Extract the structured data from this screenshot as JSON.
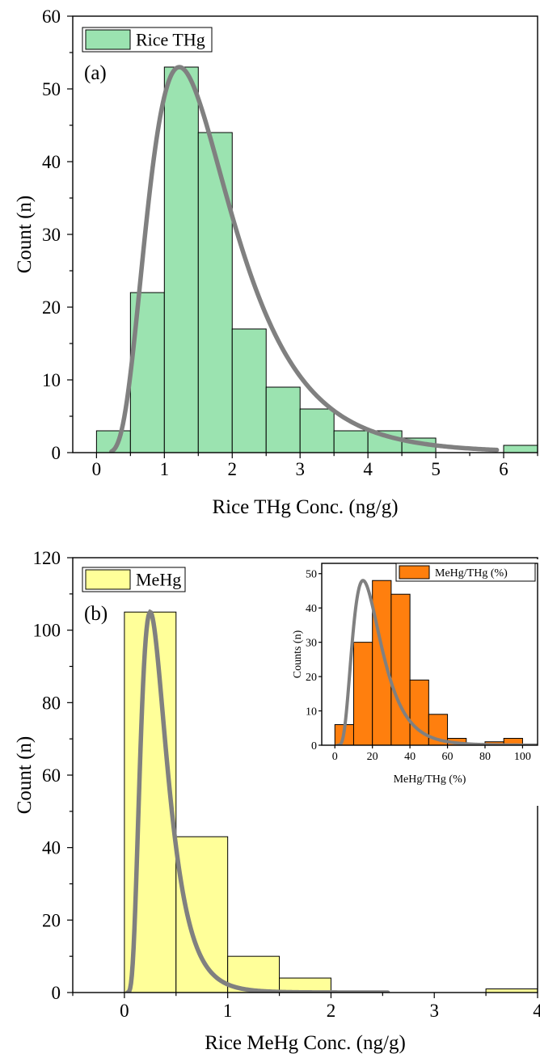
{
  "chart_data": [
    {
      "id": "a",
      "type": "bar",
      "panel_label": "(a)",
      "xlabel": "Rice THg Conc. (ng/g)",
      "ylabel": "Count (n)",
      "xlim": [
        -0.35,
        6.5
      ],
      "ylim": [
        0,
        60
      ],
      "xticks": [
        0,
        1,
        2,
        3,
        4,
        5,
        6
      ],
      "yticks": [
        0,
        10,
        20,
        30,
        40,
        50,
        60
      ],
      "bins": [
        [
          0,
          0.5,
          3
        ],
        [
          0.5,
          1,
          22
        ],
        [
          1,
          1.5,
          53
        ],
        [
          1.5,
          2,
          44
        ],
        [
          2,
          2.5,
          17
        ],
        [
          2.5,
          3,
          9
        ],
        [
          3,
          3.5,
          6
        ],
        [
          3.5,
          4,
          3
        ],
        [
          4,
          4.5,
          3
        ],
        [
          4.5,
          5,
          2
        ],
        [
          5,
          5.5,
          0
        ],
        [
          5.5,
          6,
          0
        ],
        [
          6,
          6.5,
          1
        ]
      ],
      "bar_color": "#9be3b0",
      "legend": {
        "label": "Rice THg",
        "position": "top-left"
      },
      "fit": {
        "type": "lognormal",
        "peak_x": 1.22,
        "peak_y": 53,
        "x_start": 0.22,
        "x_end": 5.9,
        "color": "#808080"
      }
    },
    {
      "id": "b",
      "type": "bar",
      "panel_label": "(b)",
      "xlabel": "Rice MeHg Conc. (ng/g)",
      "ylabel": "Count (n)",
      "xlim": [
        -0.5,
        4
      ],
      "ylim": [
        0,
        120
      ],
      "xticks": [
        0,
        1,
        2,
        3,
        4
      ],
      "yticks": [
        0,
        20,
        40,
        60,
        80,
        100,
        120
      ],
      "bins": [
        [
          0,
          0.5,
          105
        ],
        [
          0.5,
          1,
          43
        ],
        [
          1,
          1.5,
          10
        ],
        [
          1.5,
          2,
          4
        ],
        [
          2,
          2.5,
          0
        ],
        [
          2.5,
          3,
          0
        ],
        [
          3,
          3.5,
          0
        ],
        [
          3.5,
          4,
          1
        ]
      ],
      "bar_color": "#ffff99",
      "legend": {
        "label": "MeHg",
        "position": "top-left"
      },
      "fit": {
        "type": "lognormal",
        "peak_x": 0.25,
        "peak_y": 105,
        "x_start": 0.03,
        "x_end": 2.55,
        "color": "#808080"
      }
    },
    {
      "id": "b-inset",
      "type": "bar",
      "xlabel": "MeHg/THg (%)",
      "ylabel": "Counts (n)",
      "xlim": [
        -7,
        108
      ],
      "ylim": [
        0,
        53
      ],
      "xticks": [
        0,
        20,
        40,
        60,
        80,
        100
      ],
      "yticks": [
        0,
        10,
        20,
        30,
        40,
        50
      ],
      "bins": [
        [
          0,
          10,
          6
        ],
        [
          10,
          20,
          30
        ],
        [
          20,
          30,
          48
        ],
        [
          30,
          40,
          44
        ],
        [
          40,
          50,
          19
        ],
        [
          50,
          60,
          9
        ],
        [
          60,
          70,
          2
        ],
        [
          70,
          80,
          0
        ],
        [
          80,
          90,
          1
        ],
        [
          90,
          100,
          2
        ]
      ],
      "bar_color": "#ff7f0e",
      "legend": {
        "label": "MeHg/THg (%)",
        "position": "top-right"
      },
      "fit": {
        "type": "lognormal",
        "peak_x": 15,
        "peak_y": 48,
        "x_start": 1.5,
        "x_end": 108,
        "color": "#808080"
      }
    }
  ]
}
